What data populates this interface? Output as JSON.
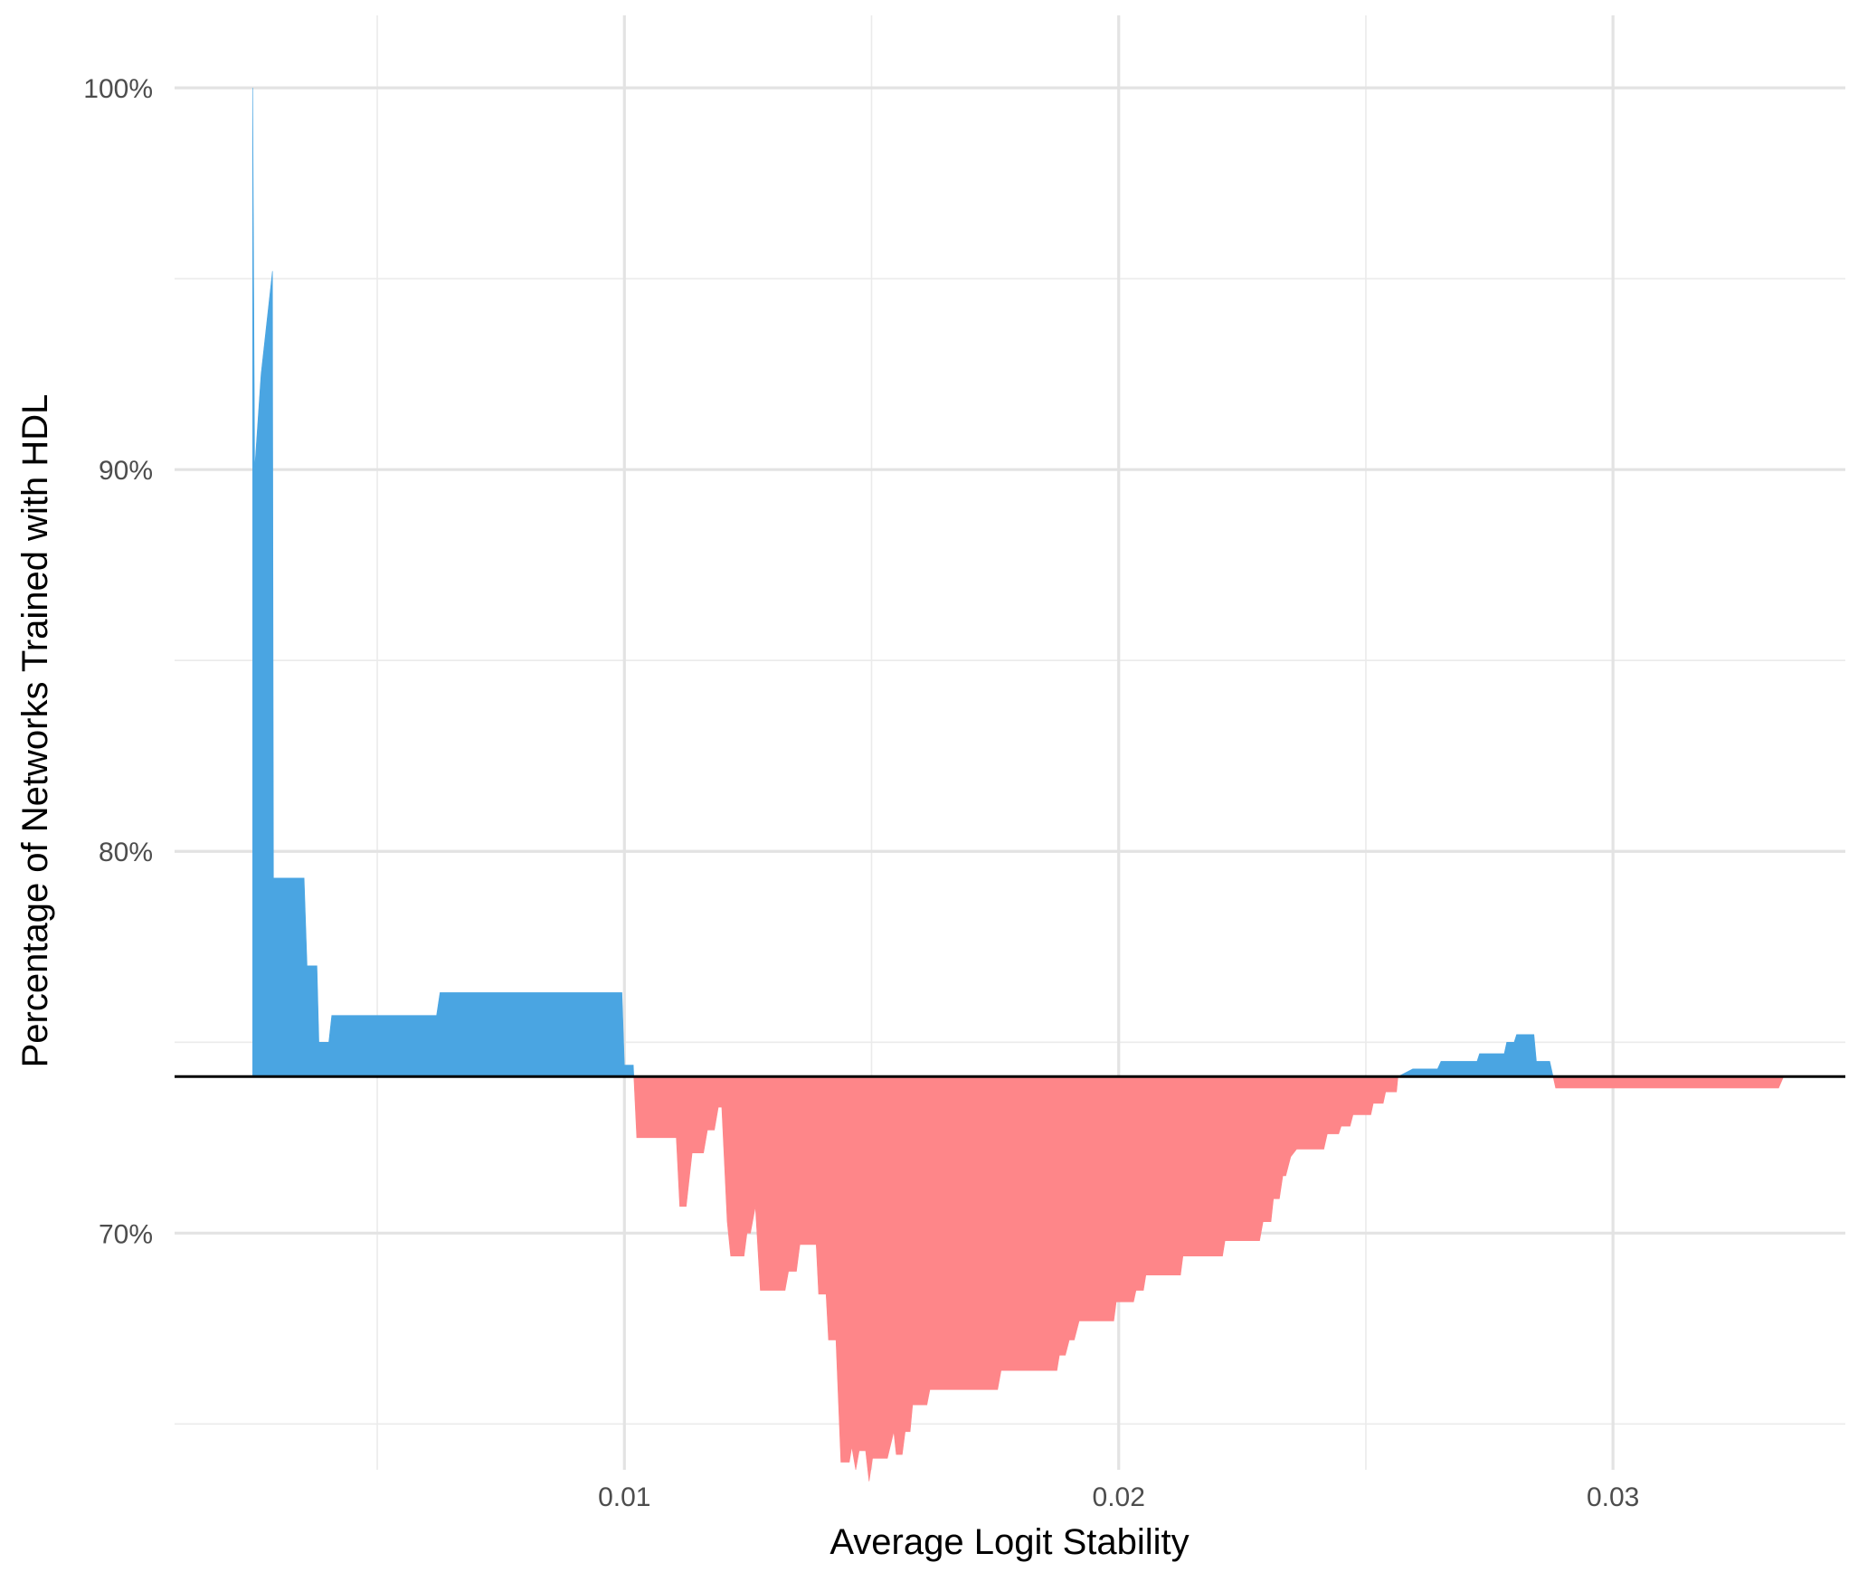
{
  "chart_data": {
    "type": "area",
    "title": "",
    "xlabel": "Average Logit Stability",
    "ylabel": "Percentage of Networks Trained with HDL",
    "xlim": [
      0.0009,
      0.0347
    ],
    "ylim": [
      0.638,
      1.0095
    ],
    "x_ticks": [
      {
        "value": 0.01,
        "label": "0.01"
      },
      {
        "value": 0.02,
        "label": "0.02"
      },
      {
        "value": 0.03,
        "label": "0.03"
      }
    ],
    "x_minor_ticks": [
      0.005,
      0.015,
      0.025,
      0.035
    ],
    "y_ticks": [
      {
        "value": 0.7,
        "label": "70%"
      },
      {
        "value": 0.8,
        "label": "80%"
      },
      {
        "value": 0.9,
        "label": "90%"
      },
      {
        "value": 1.0,
        "label": "100%"
      }
    ],
    "y_minor_ticks": [
      0.65,
      0.75,
      0.85,
      0.95
    ],
    "grid": true,
    "reference_line": {
      "y": 0.741,
      "color": "#000000"
    },
    "colors": {
      "above": "#4aa5e2",
      "below": "#fe8689"
    },
    "series": [
      {
        "points": [
          [
            0.00248,
            0.741
          ],
          [
            0.00248,
            1.0
          ],
          [
            0.00252,
            0.9
          ],
          [
            0.00265,
            0.925
          ],
          [
            0.00288,
            0.952
          ],
          [
            0.0029,
            0.793
          ],
          [
            0.00352,
            0.793
          ],
          [
            0.00358,
            0.77
          ],
          [
            0.00378,
            0.77
          ],
          [
            0.00382,
            0.75
          ],
          [
            0.00402,
            0.75
          ],
          [
            0.00408,
            0.757
          ],
          [
            0.0062,
            0.757
          ],
          [
            0.00627,
            0.763
          ],
          [
            0.00995,
            0.763
          ],
          [
            0.01,
            0.744
          ],
          [
            0.01018,
            0.744
          ],
          [
            0.01025,
            0.725
          ],
          [
            0.01105,
            0.725
          ],
          [
            0.01112,
            0.707
          ],
          [
            0.01125,
            0.707
          ],
          [
            0.01137,
            0.721
          ],
          [
            0.0116,
            0.721
          ],
          [
            0.01168,
            0.727
          ],
          [
            0.01182,
            0.727
          ],
          [
            0.0119,
            0.733
          ],
          [
            0.01197,
            0.733
          ],
          [
            0.01208,
            0.703
          ],
          [
            0.01215,
            0.694
          ],
          [
            0.01242,
            0.694
          ],
          [
            0.01248,
            0.7
          ],
          [
            0.01255,
            0.7
          ],
          [
            0.01265,
            0.707
          ],
          [
            0.01275,
            0.685
          ],
          [
            0.01325,
            0.685
          ],
          [
            0.01332,
            0.69
          ],
          [
            0.01348,
            0.69
          ],
          [
            0.01355,
            0.697
          ],
          [
            0.01388,
            0.697
          ],
          [
            0.01393,
            0.684
          ],
          [
            0.01408,
            0.684
          ],
          [
            0.01413,
            0.672
          ],
          [
            0.01428,
            0.672
          ],
          [
            0.01438,
            0.64
          ],
          [
            0.01455,
            0.64
          ],
          [
            0.0146,
            0.644
          ],
          [
            0.01468,
            0.638
          ],
          [
            0.01475,
            0.643
          ],
          [
            0.01488,
            0.643
          ],
          [
            0.01495,
            0.635
          ],
          [
            0.01502,
            0.641
          ],
          [
            0.01532,
            0.641
          ],
          [
            0.01545,
            0.648
          ],
          [
            0.0155,
            0.642
          ],
          [
            0.01562,
            0.642
          ],
          [
            0.01568,
            0.648
          ],
          [
            0.01578,
            0.648
          ],
          [
            0.01583,
            0.655
          ],
          [
            0.01612,
            0.655
          ],
          [
            0.01618,
            0.659
          ],
          [
            0.01755,
            0.659
          ],
          [
            0.01762,
            0.664
          ],
          [
            0.01875,
            0.664
          ],
          [
            0.0188,
            0.668
          ],
          [
            0.01892,
            0.668
          ],
          [
            0.019,
            0.672
          ],
          [
            0.0191,
            0.672
          ],
          [
            0.0192,
            0.677
          ],
          [
            0.0199,
            0.677
          ],
          [
            0.01995,
            0.682
          ],
          [
            0.0203,
            0.682
          ],
          [
            0.02035,
            0.685
          ],
          [
            0.0205,
            0.685
          ],
          [
            0.02055,
            0.689
          ],
          [
            0.02125,
            0.689
          ],
          [
            0.0213,
            0.694
          ],
          [
            0.0221,
            0.694
          ],
          [
            0.02215,
            0.698
          ],
          [
            0.02285,
            0.698
          ],
          [
            0.02292,
            0.703
          ],
          [
            0.02308,
            0.703
          ],
          [
            0.02313,
            0.709
          ],
          [
            0.02325,
            0.709
          ],
          [
            0.02332,
            0.715
          ],
          [
            0.02338,
            0.715
          ],
          [
            0.02348,
            0.72
          ],
          [
            0.0236,
            0.722
          ],
          [
            0.02415,
            0.722
          ],
          [
            0.02422,
            0.726
          ],
          [
            0.02445,
            0.726
          ],
          [
            0.0245,
            0.728
          ],
          [
            0.02468,
            0.728
          ],
          [
            0.02474,
            0.731
          ],
          [
            0.0251,
            0.731
          ],
          [
            0.02515,
            0.734
          ],
          [
            0.02535,
            0.734
          ],
          [
            0.0254,
            0.737
          ],
          [
            0.02562,
            0.737
          ],
          [
            0.02565,
            0.741
          ],
          [
            0.02595,
            0.743
          ],
          [
            0.02645,
            0.743
          ],
          [
            0.02652,
            0.745
          ],
          [
            0.02725,
            0.745
          ],
          [
            0.0273,
            0.747
          ],
          [
            0.0278,
            0.747
          ],
          [
            0.02785,
            0.75
          ],
          [
            0.028,
            0.75
          ],
          [
            0.02805,
            0.752
          ],
          [
            0.0284,
            0.752
          ],
          [
            0.02845,
            0.745
          ],
          [
            0.02872,
            0.745
          ],
          [
            0.02884,
            0.738
          ],
          [
            0.03335,
            0.738
          ],
          [
            0.03345,
            0.741
          ]
        ]
      }
    ]
  }
}
